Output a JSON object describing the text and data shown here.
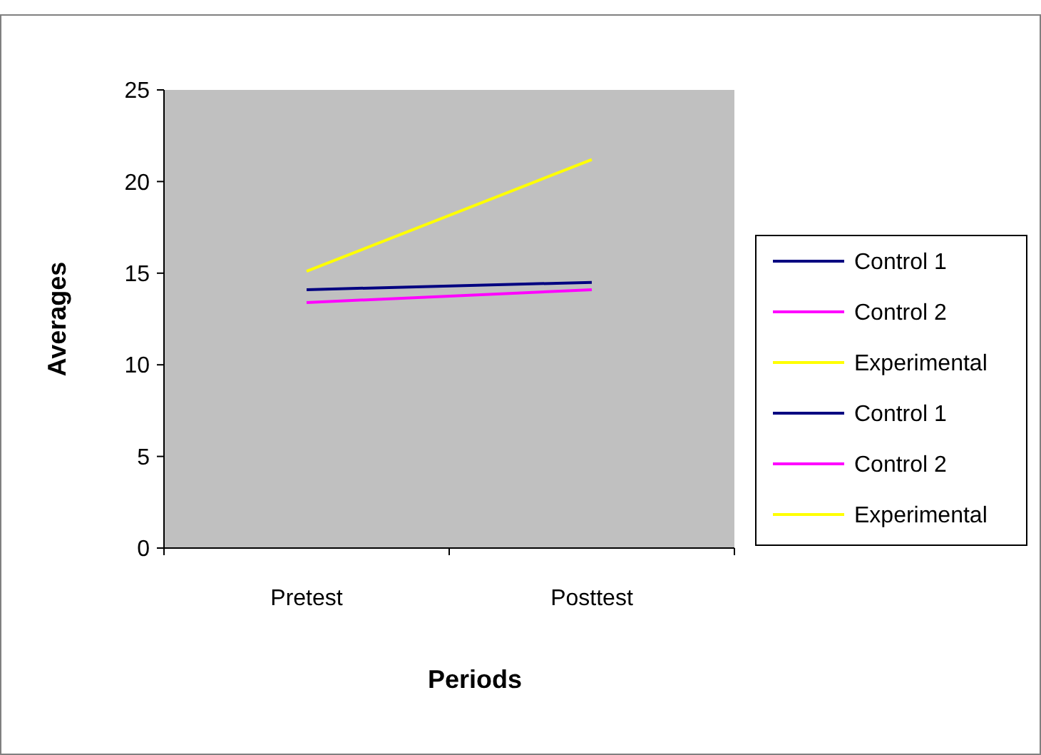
{
  "chart_data": {
    "type": "line",
    "xlabel": "Periods",
    "ylabel": "Averages",
    "categories": [
      "Pretest",
      "Posttest"
    ],
    "ylim": [
      0,
      25
    ],
    "yticks": [
      0,
      5,
      10,
      15,
      20,
      25
    ],
    "legend": "right",
    "marker": "none",
    "line_style": "solid",
    "series": [
      {
        "name": "Control 1",
        "color": "#000080",
        "values": [
          14.1,
          14.5
        ]
      },
      {
        "name": "Control 2",
        "color": "#ff00ff",
        "values": [
          13.4,
          14.1
        ]
      },
      {
        "name": "Experimental",
        "color": "#ffff00",
        "values": [
          15.1,
          21.2
        ]
      },
      {
        "name": "Control 1",
        "color": "#000080",
        "values": [
          null,
          null
        ]
      },
      {
        "name": "Control 2",
        "color": "#ff00ff",
        "values": [
          null,
          null
        ]
      },
      {
        "name": "Experimental",
        "color": "#ffff00",
        "values": [
          null,
          null
        ]
      }
    ]
  }
}
